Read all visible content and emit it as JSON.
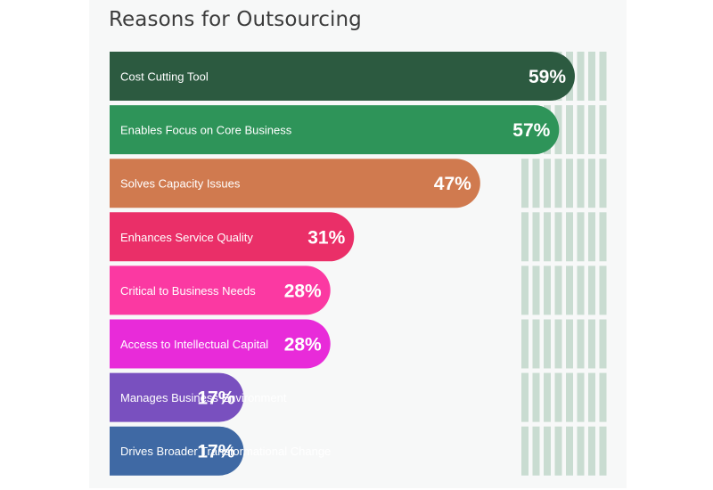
{
  "chart_data": {
    "type": "bar",
    "orientation": "horizontal",
    "title": "Reasons for Outsourcing",
    "xlim": [
      0,
      100
    ],
    "grid": false,
    "categories": [
      "Cost Cutting Tool",
      "Enables Focus on Core Business",
      "Solves Capacity Issues",
      "Enhances Service Quality",
      "Critical to Business Needs",
      "Access to Intellectual Capital",
      "Manages Business Environment",
      "Drives Broader Transformational Change"
    ],
    "values": [
      59,
      57,
      47,
      31,
      28,
      28,
      17,
      17
    ],
    "value_labels": [
      "59%",
      "57%",
      "47%",
      "31%",
      "28%",
      "28%",
      "17%",
      "17%"
    ],
    "colors": [
      "#2c5a40",
      "#2e9459",
      "#d07a4f",
      "#ea2f68",
      "#fb39a2",
      "#e82bd9",
      "#7950bf",
      "#3f69a4"
    ],
    "track_color": "#b9d3c4"
  }
}
